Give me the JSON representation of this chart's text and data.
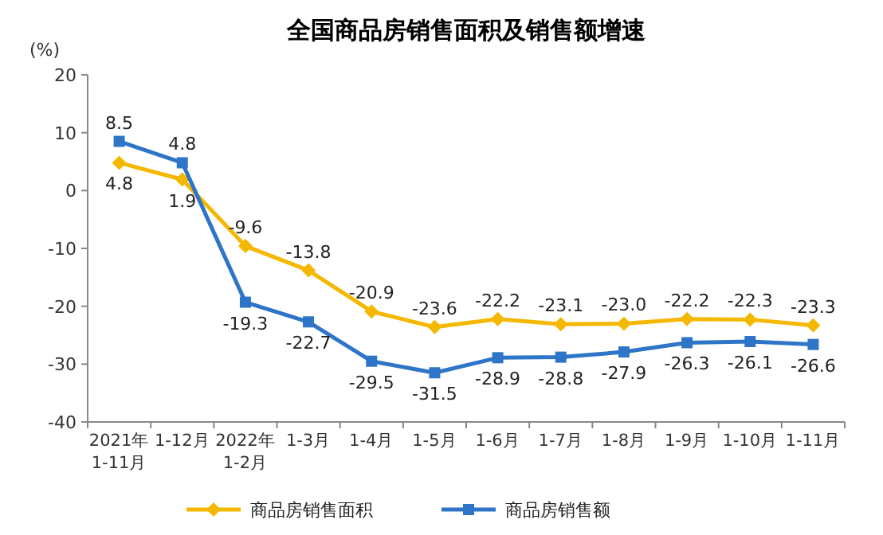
{
  "chart_data": {
    "type": "line",
    "title": "全国商品房销售面积及销售额增速",
    "ylabel": "(%)",
    "categories": [
      "2021年\n1-11月",
      "1-12月",
      "2022年\n1-2月",
      "1-3月",
      "1-4月",
      "1-5月",
      "1-6月",
      "1-7月",
      "1-8月",
      "1-9月",
      "1-10月",
      "1-11月"
    ],
    "series": [
      {
        "name": "商品房销售面积",
        "color": "#f5b800",
        "marker": "diamond",
        "values": [
          4.8,
          1.9,
          -9.6,
          -13.8,
          -20.9,
          -23.6,
          -22.2,
          -23.1,
          -23.0,
          -22.2,
          -22.3,
          -23.3
        ],
        "value_labels": [
          "4.8",
          "1.9",
          "-9.6",
          "-13.8",
          "-20.9",
          "-23.6",
          "-22.2",
          "-23.1",
          "-23.0",
          "-22.2",
          "-22.3",
          "-23.3"
        ]
      },
      {
        "name": "商品房销售额",
        "color": "#2e75c7",
        "marker": "square",
        "values": [
          8.5,
          4.8,
          -19.3,
          -22.7,
          -29.5,
          -31.5,
          -28.9,
          -28.8,
          -27.9,
          -26.3,
          -26.1,
          -26.6
        ],
        "value_labels": [
          "8.5",
          "4.8",
          "-19.3",
          "-22.7",
          "-29.5",
          "-31.5",
          "-28.9",
          "-28.8",
          "-27.9",
          "-26.3",
          "-26.1",
          "-26.6"
        ]
      }
    ],
    "ylim": [
      -40,
      20
    ],
    "yticks": [
      -40,
      -30,
      -20,
      -10,
      0,
      10,
      20
    ],
    "legend": "bottom",
    "grid": false
  }
}
